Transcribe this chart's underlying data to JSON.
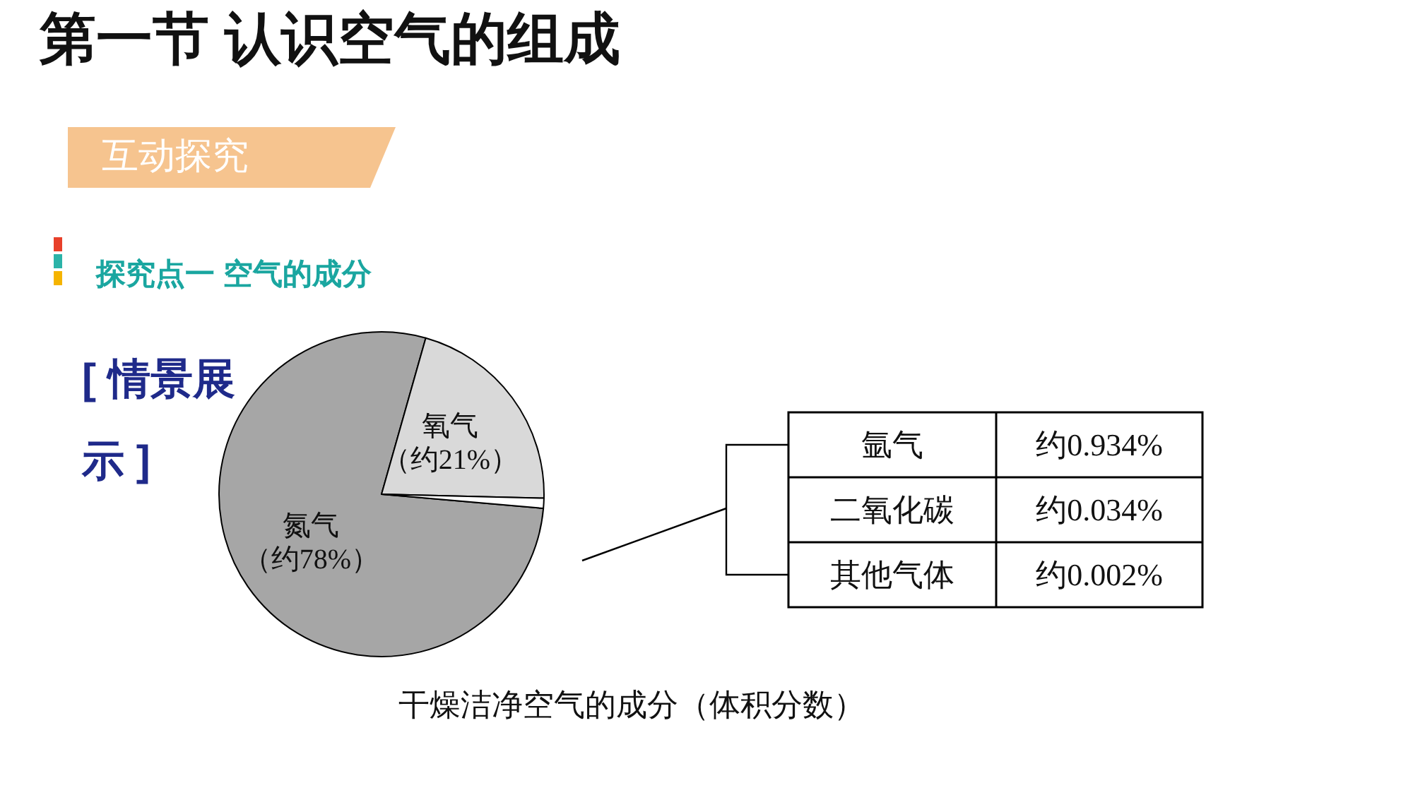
{
  "chart_data": {
    "type": "pie",
    "title": "第一节 认识空气的组成",
    "subtitle": "互动探究",
    "categories": [
      "氮气",
      "氧气",
      null
    ],
    "values": [
      78,
      21,
      1
    ],
    "colors": [
      "#a6a6a6",
      "#d9d9d9",
      "#ffffff"
    ],
    "value_labels": [
      "（约78%）",
      "（约21%）",
      null
    ],
    "annotations": [
      "探究点一 空气的成分",
      "[ 情景展示 ]",
      "干燥洁净空气的成分（体积分数）",
      "氩气",
      "约0.934%",
      "二氧化碳",
      "约0.034%",
      "其他气体",
      "约0.002%"
    ],
    "legend": false
  }
}
